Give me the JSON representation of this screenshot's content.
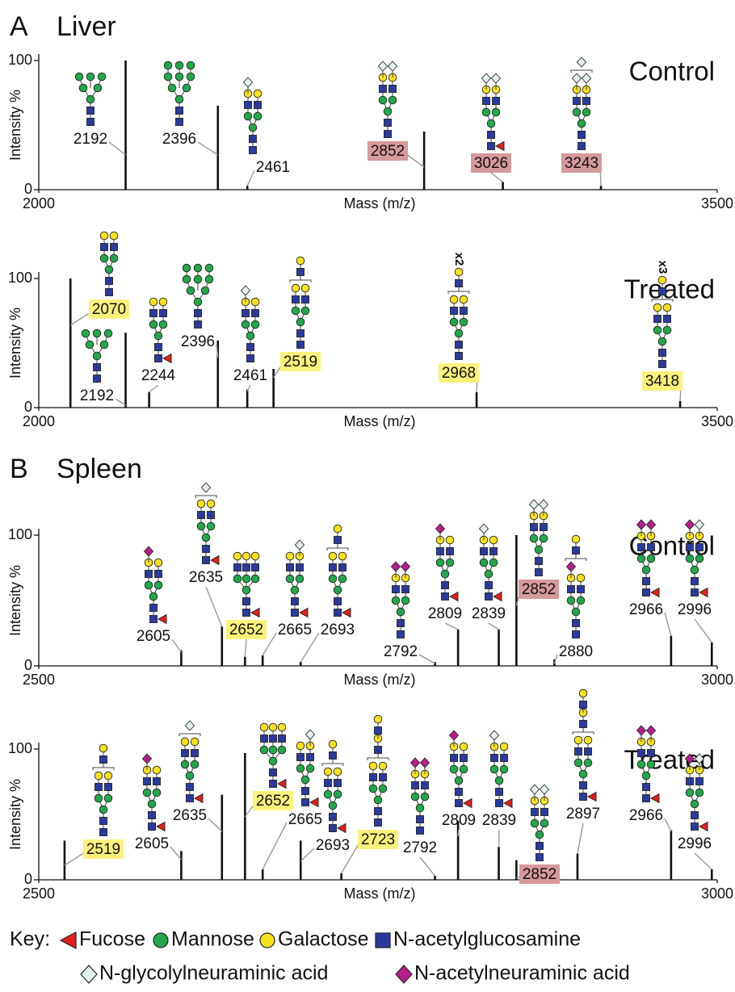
{
  "panels": [
    {
      "letter": "A",
      "title": "Liver"
    },
    {
      "letter": "B",
      "title": "Spleen"
    }
  ],
  "chart_data": [
    {
      "type": "spectrum",
      "condition": "Control",
      "ylabel": "Intensity %",
      "xlabel": "Mass (m/z)",
      "xlim": [
        2000,
        3500
      ],
      "xticks": [
        2000,
        3500
      ],
      "ylim": [
        0,
        100
      ],
      "yticks": [
        0,
        100
      ],
      "color": "#111111",
      "peaks": [
        {
          "x": 2192,
          "value": 100
        },
        {
          "x": 2396,
          "value": 65
        },
        {
          "x": 2461,
          "value": 3
        },
        {
          "x": 2852,
          "value": 45,
          "label_color": "#d6999b"
        },
        {
          "x": 3026,
          "value": 6,
          "label_color": "#d6999b"
        },
        {
          "x": 3243,
          "value": 3,
          "label_color": "#d6999b"
        }
      ]
    },
    {
      "type": "spectrum",
      "condition": "Treated",
      "ylabel": "Intensity %",
      "xlabel": "Mass (m/z)",
      "xlim": [
        2000,
        3500
      ],
      "xticks": [
        2000,
        3500
      ],
      "ylim": [
        0,
        100
      ],
      "yticks": [
        0,
        100
      ],
      "color": "#111111",
      "peaks": [
        {
          "x": 2070,
          "value": 100,
          "label_color": "#fbf27c"
        },
        {
          "x": 2192,
          "value": 58
        },
        {
          "x": 2244,
          "value": 12
        },
        {
          "x": 2396,
          "value": 52
        },
        {
          "x": 2461,
          "value": 14
        },
        {
          "x": 2519,
          "value": 30,
          "label_color": "#fbf27c"
        },
        {
          "x": 2968,
          "value": 12,
          "label_color": "#fbf27c",
          "repeat_label": "x2"
        },
        {
          "x": 3418,
          "value": 5,
          "label_color": "#fbf27c",
          "repeat_label": "x3"
        }
      ]
    },
    {
      "type": "spectrum",
      "condition": "Control",
      "ylabel": "Intensity %",
      "xlabel": "Mass (m/z)",
      "xlim": [
        2500,
        3000
      ],
      "xticks": [
        2500,
        3000
      ],
      "ylim": [
        0,
        100
      ],
      "yticks": [
        0,
        100
      ],
      "color": "#111111",
      "peaks": [
        {
          "x": 2605,
          "value": 12
        },
        {
          "x": 2635,
          "value": 30
        },
        {
          "x": 2652,
          "value": 7,
          "label_color": "#fbf27c"
        },
        {
          "x": 2665,
          "value": 8
        },
        {
          "x": 2693,
          "value": 3
        },
        {
          "x": 2792,
          "value": 3
        },
        {
          "x": 2809,
          "value": 28
        },
        {
          "x": 2839,
          "value": 28
        },
        {
          "x": 2852,
          "value": 100,
          "label_color": "#d6999b"
        },
        {
          "x": 2880,
          "value": 5
        },
        {
          "x": 2966,
          "value": 23
        },
        {
          "x": 2996,
          "value": 18
        }
      ]
    },
    {
      "type": "spectrum",
      "condition": "Treated",
      "ylabel": "Intensity %",
      "xlabel": "Mass (m/z)",
      "xlim": [
        2500,
        3000
      ],
      "xticks": [
        2500,
        3000
      ],
      "ylim": [
        0,
        100
      ],
      "yticks": [
        0,
        100
      ],
      "color": "#111111",
      "peaks": [
        {
          "x": 2519,
          "value": 30,
          "label_color": "#fbf27c"
        },
        {
          "x": 2605,
          "value": 22
        },
        {
          "x": 2635,
          "value": 65
        },
        {
          "x": 2652,
          "value": 97,
          "label_color": "#fbf27c"
        },
        {
          "x": 2665,
          "value": 8
        },
        {
          "x": 2693,
          "value": 30
        },
        {
          "x": 2723,
          "value": 5,
          "label_color": "#fbf27c"
        },
        {
          "x": 2792,
          "value": 3
        },
        {
          "x": 2809,
          "value": 45
        },
        {
          "x": 2839,
          "value": 25
        },
        {
          "x": 2852,
          "value": 15,
          "label_color": "#d6999b"
        },
        {
          "x": 2897,
          "value": 20
        },
        {
          "x": 2966,
          "value": 38
        },
        {
          "x": 2996,
          "value": 8
        }
      ]
    }
  ],
  "key": {
    "title": "Key:",
    "items": [
      {
        "name": "Fucose",
        "color": "#e0201b"
      },
      {
        "name": "Mannose",
        "color": "#22a84a"
      },
      {
        "name": "Galactose",
        "color": "#f6e11e"
      },
      {
        "name": "N-acetylglucosamine",
        "color": "#2b3a9e"
      },
      {
        "name": "N-glycolylneuraminic acid",
        "color": "#e4f2ef"
      },
      {
        "name": "N-acetylneuraminic acid",
        "color": "#b51f8c"
      }
    ]
  }
}
